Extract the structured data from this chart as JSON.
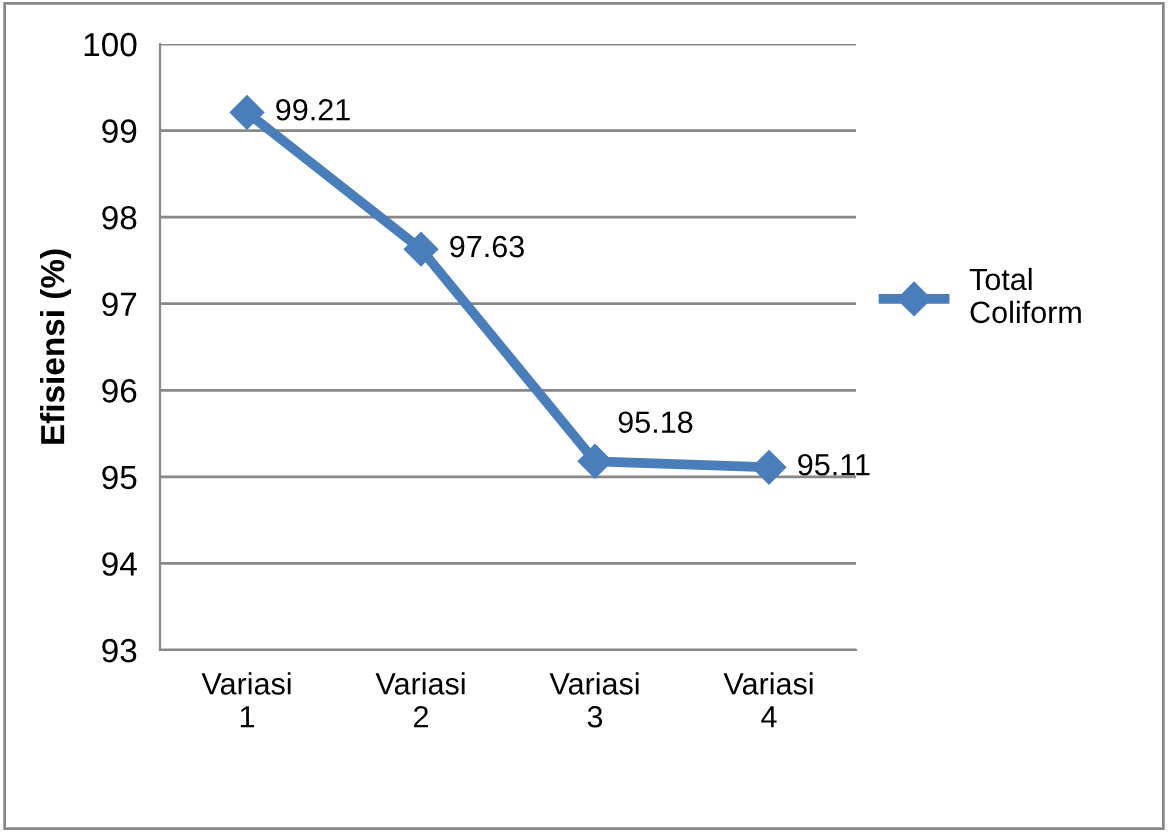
{
  "chart_data": {
    "type": "line",
    "ylabel": "Efisiensi (%)",
    "categories": [
      "Variasi 1",
      "Variasi 2",
      "Variasi 3",
      "Variasi 4"
    ],
    "series": [
      {
        "name": "Total Coliform",
        "color": "#4a7ebb",
        "values": [
          99.21,
          97.63,
          95.18,
          95.11
        ]
      }
    ],
    "ylim": [
      93,
      100
    ],
    "yticks": [
      93,
      94,
      95,
      96,
      97,
      98,
      99,
      100
    ],
    "grid": "y",
    "legend": "right",
    "marker": "diamond",
    "line_style": "solid",
    "data_labels": true
  }
}
